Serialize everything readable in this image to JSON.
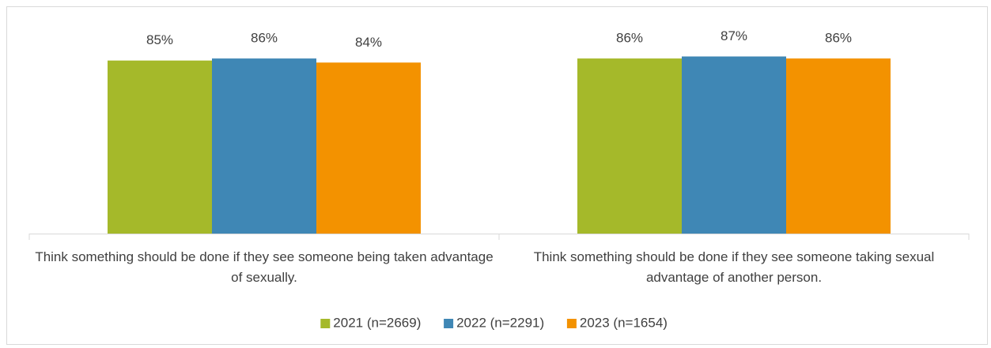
{
  "chart_data": {
    "type": "bar",
    "categories": [
      "Think something should be done if they see someone being taken advantage of sexually.",
      "Think something should be done if they see someone taking sexual advantage of another person."
    ],
    "series": [
      {
        "name": "2021 (n=2669)",
        "color": "#a5b92a",
        "values": [
          85,
          86
        ],
        "value_labels": [
          "85%",
          "86%"
        ]
      },
      {
        "name": "2022 (n=2291)",
        "color": "#3f87b5",
        "values": [
          86,
          87
        ],
        "value_labels": [
          "86%",
          "87%"
        ]
      },
      {
        "name": "2023 (n=1654)",
        "color": "#f39200",
        "values": [
          84,
          86
        ],
        "value_labels": [
          "84%",
          "86%"
        ]
      }
    ],
    "ylim": [
      0,
      100
    ],
    "legend": "bottom"
  }
}
